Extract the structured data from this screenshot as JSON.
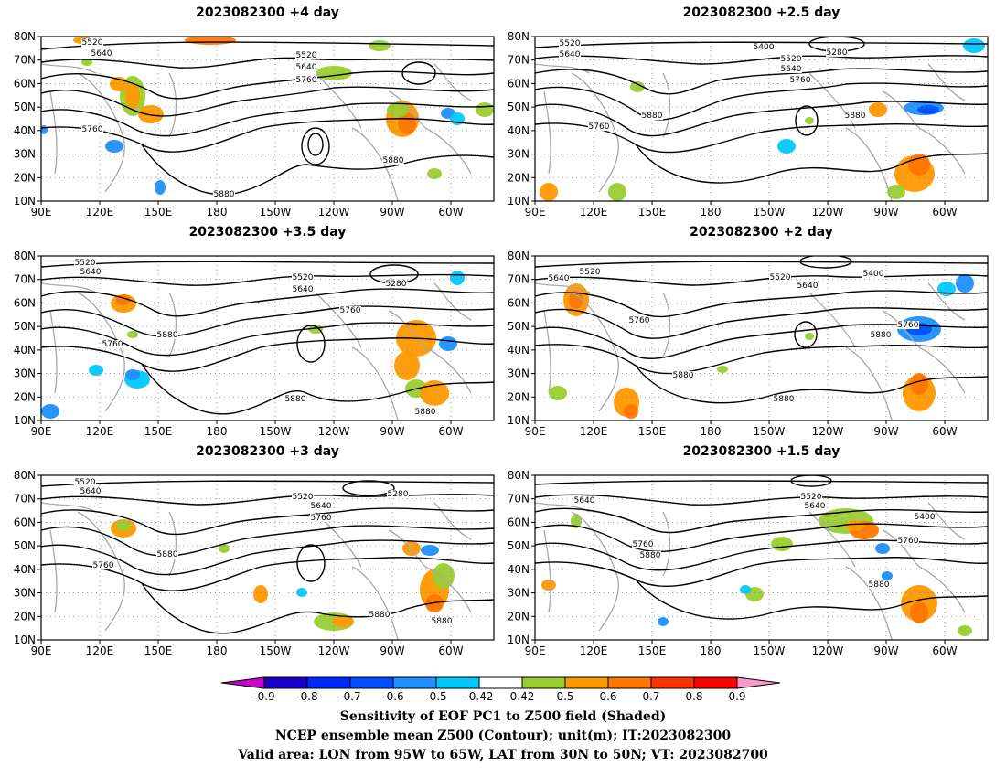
{
  "panels": [
    {
      "title": "2023082300  +4 day",
      "contours": [
        "5520",
        "5640",
        "5520",
        "5640",
        "5760",
        "5760",
        "5880",
        "5880"
      ]
    },
    {
      "title": "2023082300  +2.5 day",
      "contours": [
        "5520",
        "5640",
        "5400",
        "5280",
        "5520",
        "5640",
        "5760",
        "5880",
        "5880",
        "5760"
      ]
    },
    {
      "title": "2023082300  +3.5 day",
      "contours": [
        "5520",
        "5640",
        "5520",
        "5280",
        "5640",
        "5760",
        "5760",
        "5880",
        "5880",
        "5880"
      ]
    },
    {
      "title": "2023082300  +2 day",
      "contours": [
        "5640",
        "5520",
        "5520",
        "5400",
        "5640",
        "5760",
        "5760",
        "5880",
        "5880",
        "5880"
      ]
    },
    {
      "title": "2023082300  +3 day",
      "contours": [
        "5520",
        "5640",
        "5520",
        "5280",
        "5640",
        "5760",
        "5880",
        "5760",
        "5880",
        "5880"
      ]
    },
    {
      "title": "2023082300  +1.5 day",
      "contours": [
        "5640",
        "5520",
        "5640",
        "5400",
        "5760",
        "5880",
        "5760",
        "5880"
      ]
    }
  ],
  "lat_labels": [
    "80N",
    "70N",
    "60N",
    "50N",
    "40N",
    "30N",
    "20N",
    "10N"
  ],
  "lon_labels": [
    "90E",
    "120E",
    "150E",
    "180",
    "150W",
    "120W",
    "90W",
    "60W"
  ],
  "colorbar": {
    "tick_labels": [
      "-0.9",
      "-0.8",
      "-0.7",
      "-0.6",
      "-0.5",
      "-0.42",
      "0.42",
      "0.5",
      "0.6",
      "0.7",
      "0.8",
      "0.9"
    ],
    "colors": [
      "#c800c8",
      "#1a00c8",
      "#0028ff",
      "#0050ff",
      "#1e90ff",
      "#00c8ff",
      "#ffffff",
      "#9acd32",
      "#ff9900",
      "#ff7700",
      "#ff3300",
      "#ff0000",
      "#ff99cc"
    ]
  },
  "footer": {
    "line1": "Sensitivity of EOF PC1 to Z500 field (Shaded)",
    "line2": "NCEP ensemble mean Z500 (Contour); unit(m); IT:2023082300",
    "line3": "Valid area: LON from 95W to 65W, LAT from 30N to 50N; VT: 2023082700"
  }
}
